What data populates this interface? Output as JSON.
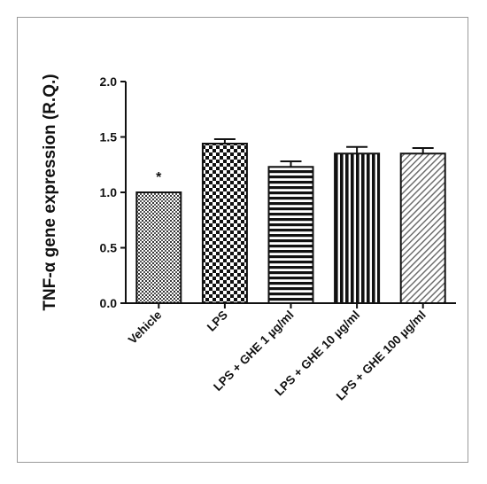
{
  "chart_data": {
    "type": "bar",
    "title": "",
    "xlabel": "",
    "ylabel": "TNF-α gene expression (R.Q.)",
    "ylim": [
      0,
      2.0
    ],
    "yticks": [
      "0.0",
      "0.5",
      "1.0",
      "1.5",
      "2.0"
    ],
    "categories": [
      "Vehicle",
      "LPS",
      "LPS + GHE 1 µg/ml",
      "LPS + GHE 10 µg/ml",
      "LPS + GHE 100 µg/ml"
    ],
    "values": [
      1.0,
      1.44,
      1.23,
      1.35,
      1.35
    ],
    "errors": [
      0.0,
      0.04,
      0.05,
      0.06,
      0.05
    ],
    "annotations": [
      "*",
      "",
      "",
      "",
      ""
    ],
    "fill_patterns": [
      "fine-dots",
      "checker",
      "horizontal-stripes",
      "vertical-stripes",
      "diagonal-hatch"
    ],
    "bar_color": "#111111",
    "grid": false,
    "legend": "none"
  }
}
